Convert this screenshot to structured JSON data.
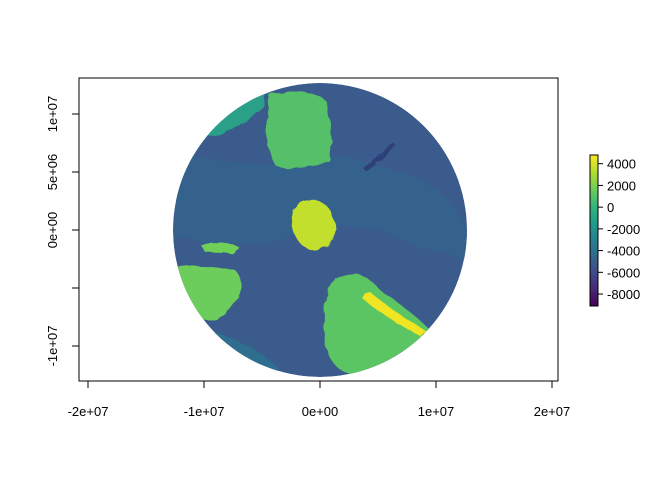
{
  "chart_data": {
    "type": "heatmap",
    "subtype": "raster map, polar projection (south-pole centred)",
    "title": "",
    "xlabel": "",
    "ylabel": "",
    "xlim": [
      -20500000,
      20500000
    ],
    "ylim": [
      -13000000,
      13000000
    ],
    "x_ticks": [
      {
        "value": -20000000,
        "label": "-2e+07"
      },
      {
        "value": -10000000,
        "label": "-1e+07"
      },
      {
        "value": 0,
        "label": "0e+00"
      },
      {
        "value": 10000000,
        "label": "1e+07"
      },
      {
        "value": 20000000,
        "label": "2e+07"
      }
    ],
    "y_ticks": [
      {
        "value": -10000000,
        "label": "-1e+07"
      },
      {
        "value": -5000000,
        "label": ""
      },
      {
        "value": 0,
        "label": "0e+00"
      },
      {
        "value": 5000000,
        "label": "5e+06"
      },
      {
        "value": 10000000,
        "label": "1e+07"
      }
    ],
    "disc_radius": 12700000,
    "colorbar": {
      "palette": "viridis",
      "colors": [
        "#440154",
        "#482878",
        "#3e4a89",
        "#31688e",
        "#26828e",
        "#1f9e89",
        "#35b779",
        "#6ece58",
        "#b5de2b",
        "#fde725"
      ],
      "range": [
        -9100,
        4800
      ],
      "ticks": [
        {
          "value": 4000,
          "label": "4000"
        },
        {
          "value": 2000,
          "label": "2000"
        },
        {
          "value": 0,
          "label": "0"
        },
        {
          "value": -2000,
          "label": "-2000"
        },
        {
          "value": -4000,
          "label": "-4000"
        },
        {
          "value": -6000,
          "label": "-6000"
        },
        {
          "value": -8000,
          "label": "-8000"
        }
      ]
    }
  }
}
